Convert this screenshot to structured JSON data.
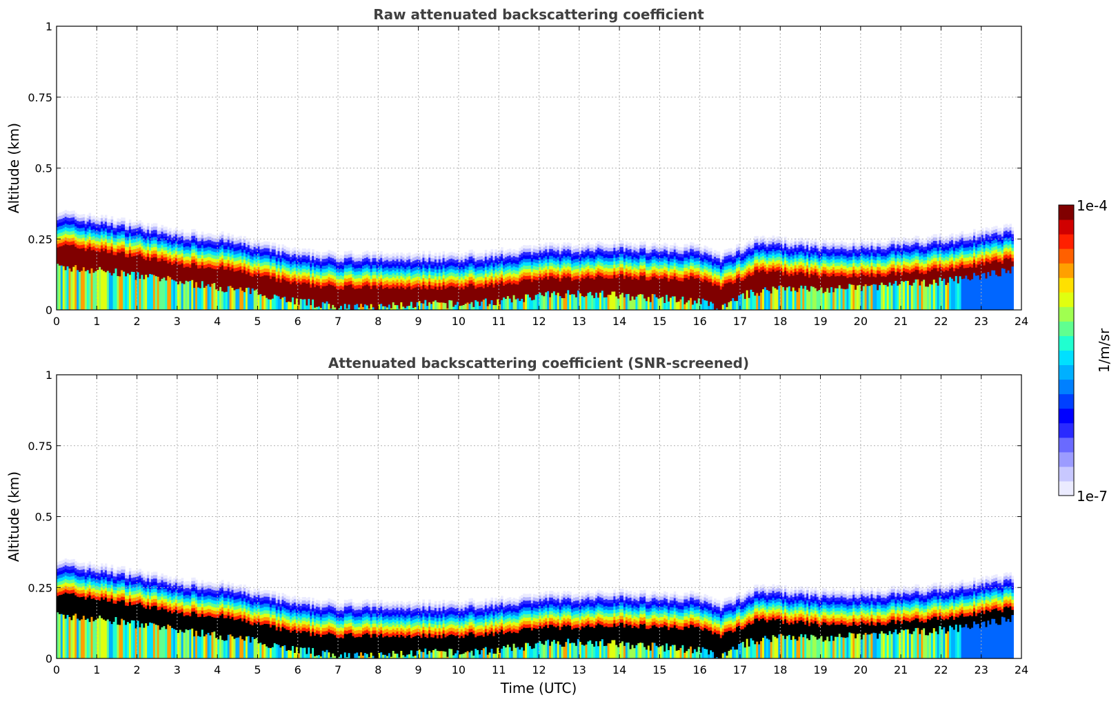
{
  "chart_data": [
    {
      "type": "heatmap",
      "title": "Raw attenuated backscattering coefficient",
      "xlabel": "",
      "ylabel": "Altitude (km)",
      "xlim": [
        0,
        24
      ],
      "ylim": [
        0,
        1
      ],
      "xticks": [
        "0",
        "1",
        "2",
        "3",
        "4",
        "5",
        "6",
        "7",
        "8",
        "9",
        "10",
        "11",
        "12",
        "13",
        "14",
        "15",
        "16",
        "17",
        "18",
        "19",
        "20",
        "21",
        "22",
        "23",
        "24"
      ],
      "yticks": [
        "0",
        "0.25",
        "0.5",
        "0.75",
        "1"
      ],
      "grid": true,
      "layer_top_km": [
        [
          0,
          0.35
        ],
        [
          1,
          0.33
        ],
        [
          2,
          0.31
        ],
        [
          3,
          0.28
        ],
        [
          4,
          0.27
        ],
        [
          5,
          0.24
        ],
        [
          6,
          0.21
        ],
        [
          7,
          0.2
        ],
        [
          8,
          0.2
        ],
        [
          9,
          0.2
        ],
        [
          10,
          0.2
        ],
        [
          11,
          0.21
        ],
        [
          12,
          0.23
        ],
        [
          13,
          0.23
        ],
        [
          14,
          0.24
        ],
        [
          15,
          0.23
        ],
        [
          16,
          0.23
        ],
        [
          16.5,
          0.2
        ],
        [
          17,
          0.23
        ],
        [
          17.5,
          0.26
        ],
        [
          18,
          0.25
        ],
        [
          19,
          0.24
        ],
        [
          20,
          0.24
        ],
        [
          21,
          0.25
        ],
        [
          22,
          0.26
        ],
        [
          23,
          0.28
        ],
        [
          23.8,
          0.3
        ]
      ],
      "dense_core_bottom_km": [
        [
          0,
          0.15
        ],
        [
          1,
          0.14
        ],
        [
          2,
          0.12
        ],
        [
          3,
          0.1
        ],
        [
          4,
          0.08
        ],
        [
          5,
          0.06
        ],
        [
          6,
          0.03
        ],
        [
          7,
          0.01
        ],
        [
          8,
          0.01
        ],
        [
          9,
          0.02
        ],
        [
          10,
          0.02
        ],
        [
          11,
          0.03
        ],
        [
          12,
          0.05
        ],
        [
          13,
          0.06
        ],
        [
          14,
          0.05
        ],
        [
          15,
          0.04
        ],
        [
          16,
          0.03
        ],
        [
          16.5,
          0.0
        ],
        [
          17,
          0.05
        ],
        [
          18,
          0.08
        ],
        [
          19,
          0.07
        ],
        [
          20,
          0.08
        ],
        [
          21,
          0.09
        ],
        [
          22,
          0.1
        ],
        [
          23,
          0.12
        ],
        [
          23.8,
          0.14
        ]
      ],
      "data_end_hour": 23.8
    },
    {
      "type": "heatmap",
      "title": "Attenuated backscattering coefficient (SNR-screened)",
      "xlabel": "Time (UTC)",
      "ylabel": "Altitude (km)",
      "xlim": [
        0,
        24
      ],
      "ylim": [
        0,
        1
      ],
      "xticks": [
        "0",
        "1",
        "2",
        "3",
        "4",
        "5",
        "6",
        "7",
        "8",
        "9",
        "10",
        "11",
        "12",
        "13",
        "14",
        "15",
        "16",
        "17",
        "18",
        "19",
        "20",
        "21",
        "22",
        "23",
        "24"
      ],
      "yticks": [
        "0",
        "0.25",
        "0.5",
        "0.75",
        "1"
      ],
      "grid": true,
      "screened_color": "#000000",
      "data_end_hour": 23.8
    }
  ],
  "colorbar": {
    "label": "1/m/sr",
    "max_label": "1e-4",
    "min_label": "1e-7",
    "colors": [
      "#ebebff",
      "#c8c8ff",
      "#9c9cff",
      "#6a6aff",
      "#2a2aff",
      "#0000ff",
      "#0040ff",
      "#0080ff",
      "#00b0ff",
      "#00e0ff",
      "#20ffd0",
      "#60ff90",
      "#a0ff50",
      "#e0ff10",
      "#ffe000",
      "#ffa000",
      "#ff6000",
      "#ff2000",
      "#d00000",
      "#800000"
    ]
  }
}
